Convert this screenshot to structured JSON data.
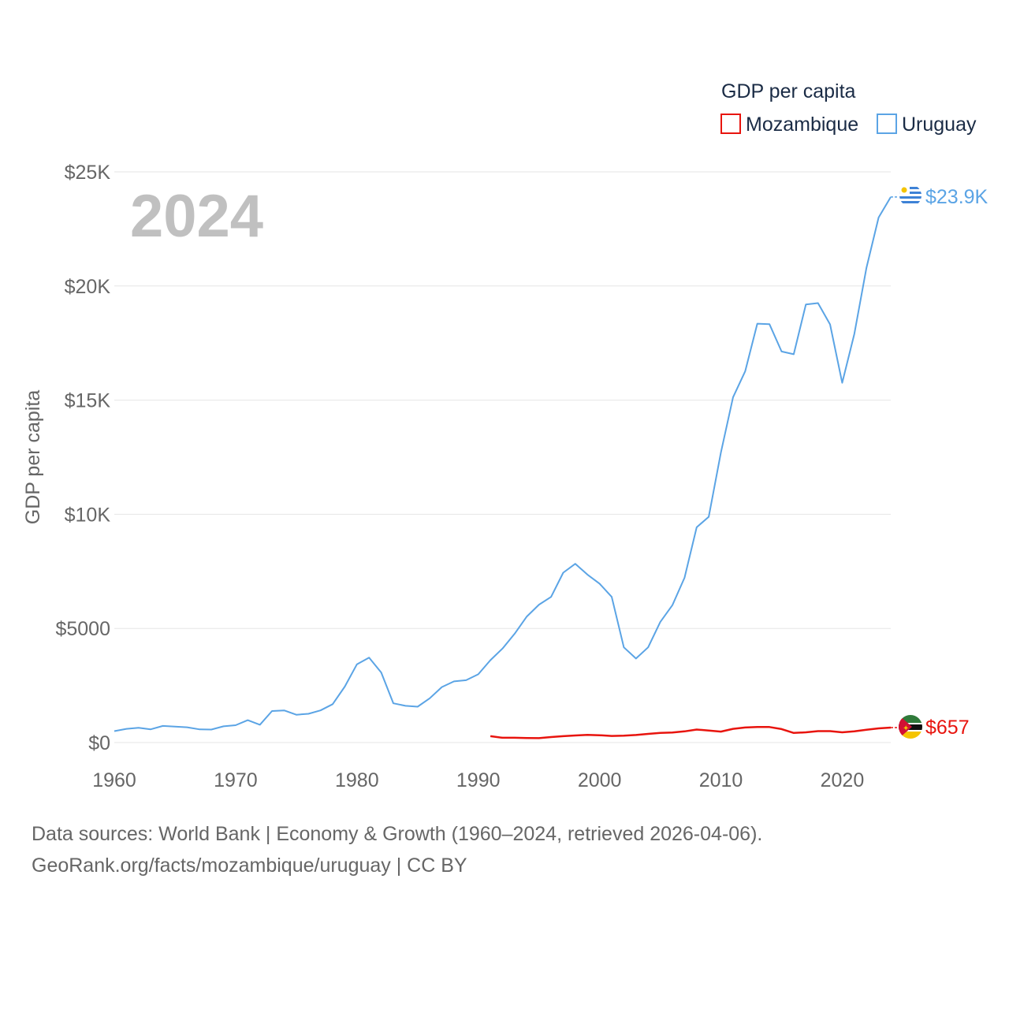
{
  "colors": {
    "mozambique": "#e8140e",
    "uruguay": "#5ba4e5",
    "grid": "#e6e6e6",
    "axis_text": "#666666",
    "legend_text": "#1a2b45",
    "year_watermark": "#c0c0c0"
  },
  "chart_data": {
    "type": "line",
    "title": "",
    "xlabel": "",
    "ylabel": "GDP per capita",
    "year_label": "2024",
    "legend_title": "GDP per capita",
    "legend_position": "top-right",
    "xlim": [
      1960,
      2024
    ],
    "ylim": [
      0,
      25000
    ],
    "x_ticks": [
      {
        "value": 1960,
        "label": "1960"
      },
      {
        "value": 1970,
        "label": "1970"
      },
      {
        "value": 1980,
        "label": "1980"
      },
      {
        "value": 1990,
        "label": "1990"
      },
      {
        "value": 2000,
        "label": "2000"
      },
      {
        "value": 2010,
        "label": "2010"
      },
      {
        "value": 2020,
        "label": "2020"
      }
    ],
    "y_ticks": [
      {
        "value": 0,
        "label": "$0"
      },
      {
        "value": 5000,
        "label": "$5000"
      },
      {
        "value": 10000,
        "label": "$10K"
      },
      {
        "value": 15000,
        "label": "$15K"
      },
      {
        "value": 20000,
        "label": "$20K"
      },
      {
        "value": 25000,
        "label": "$25K"
      }
    ],
    "series": [
      {
        "name": "Mozambique",
        "key": "mozambique",
        "end_label": "$657",
        "end_value": 657,
        "flag": "mozambique-flag-icon",
        "points": [
          [
            1991,
            280
          ],
          [
            1992,
            210
          ],
          [
            1993,
            210
          ],
          [
            1994,
            200
          ],
          [
            1995,
            195
          ],
          [
            1996,
            240
          ],
          [
            1997,
            280
          ],
          [
            1998,
            310
          ],
          [
            1999,
            340
          ],
          [
            2000,
            320
          ],
          [
            2001,
            290
          ],
          [
            2002,
            300
          ],
          [
            2003,
            330
          ],
          [
            2004,
            380
          ],
          [
            2005,
            420
          ],
          [
            2006,
            440
          ],
          [
            2007,
            490
          ],
          [
            2008,
            570
          ],
          [
            2009,
            530
          ],
          [
            2010,
            480
          ],
          [
            2011,
            600
          ],
          [
            2012,
            660
          ],
          [
            2013,
            680
          ],
          [
            2014,
            680
          ],
          [
            2015,
            590
          ],
          [
            2016,
            420
          ],
          [
            2017,
            450
          ],
          [
            2018,
            500
          ],
          [
            2019,
            500
          ],
          [
            2020,
            450
          ],
          [
            2021,
            490
          ],
          [
            2022,
            560
          ],
          [
            2023,
            620
          ],
          [
            2024,
            657
          ]
        ]
      },
      {
        "name": "Uruguay",
        "key": "uruguay",
        "end_label": "$23.9K",
        "end_value": 23900,
        "flag": "uruguay-flag-icon",
        "points": [
          [
            1960,
            500
          ],
          [
            1961,
            600
          ],
          [
            1962,
            650
          ],
          [
            1963,
            580
          ],
          [
            1964,
            730
          ],
          [
            1965,
            700
          ],
          [
            1966,
            670
          ],
          [
            1967,
            580
          ],
          [
            1968,
            570
          ],
          [
            1969,
            710
          ],
          [
            1970,
            760
          ],
          [
            1971,
            980
          ],
          [
            1972,
            780
          ],
          [
            1973,
            1380
          ],
          [
            1974,
            1410
          ],
          [
            1975,
            1220
          ],
          [
            1976,
            1260
          ],
          [
            1977,
            1410
          ],
          [
            1978,
            1680
          ],
          [
            1979,
            2450
          ],
          [
            1980,
            3430
          ],
          [
            1981,
            3720
          ],
          [
            1982,
            3070
          ],
          [
            1983,
            1720
          ],
          [
            1984,
            1610
          ],
          [
            1985,
            1570
          ],
          [
            1986,
            1940
          ],
          [
            1987,
            2430
          ],
          [
            1988,
            2680
          ],
          [
            1989,
            2730
          ],
          [
            1990,
            2990
          ],
          [
            1991,
            3610
          ],
          [
            1992,
            4120
          ],
          [
            1993,
            4770
          ],
          [
            1994,
            5520
          ],
          [
            1995,
            6040
          ],
          [
            1996,
            6380
          ],
          [
            1997,
            7440
          ],
          [
            1998,
            7830
          ],
          [
            1999,
            7360
          ],
          [
            2000,
            6960
          ],
          [
            2001,
            6380
          ],
          [
            2002,
            4170
          ],
          [
            2003,
            3680
          ],
          [
            2004,
            4170
          ],
          [
            2005,
            5280
          ],
          [
            2006,
            6020
          ],
          [
            2007,
            7220
          ],
          [
            2008,
            9430
          ],
          [
            2009,
            9890
          ],
          [
            2010,
            12700
          ],
          [
            2011,
            15120
          ],
          [
            2012,
            16260
          ],
          [
            2013,
            18350
          ],
          [
            2014,
            18330
          ],
          [
            2015,
            17130
          ],
          [
            2016,
            17010
          ],
          [
            2017,
            19190
          ],
          [
            2018,
            19250
          ],
          [
            2019,
            18320
          ],
          [
            2020,
            15760
          ],
          [
            2021,
            17900
          ],
          [
            2022,
            20800
          ],
          [
            2023,
            23000
          ],
          [
            2024,
            23900
          ]
        ]
      }
    ]
  },
  "footer": {
    "sources": "Data sources: World Bank | Economy & Growth (1960–2024, retrieved 2026-04-06).",
    "credit": "GeoRank.org/facts/mozambique/uruguay | CC BY"
  }
}
